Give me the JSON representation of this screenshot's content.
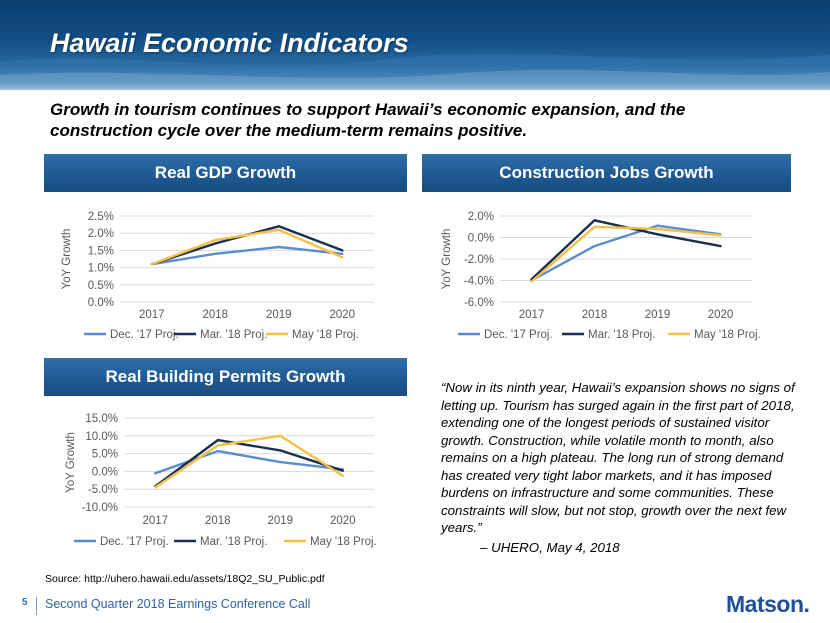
{
  "slide": {
    "title": "Hawaii Economic Indicators",
    "subtitle": "Growth in tourism continues to support Hawaii’s economic expansion, and the construction cycle over the medium-term remains positive."
  },
  "colors": {
    "dec17": "#5b8ccd",
    "mar18": "#1a2f4f",
    "may18": "#f6c046",
    "header_blue": "#1f5a93"
  },
  "chart_data": [
    {
      "id": "gdp",
      "type": "line",
      "title": "Real GDP Growth",
      "ylabel": "YoY Growth",
      "xlabel": "",
      "categories": [
        "2017",
        "2018",
        "2019",
        "2020"
      ],
      "ylim": [
        0.0,
        2.5
      ],
      "yticks": [
        0.0,
        0.5,
        1.0,
        1.5,
        2.0,
        2.5
      ],
      "ytick_labels": [
        "0.0%",
        "0.5%",
        "1.0%",
        "1.5%",
        "2.0%",
        "2.5%"
      ],
      "series": [
        {
          "name": "Dec. '17 Proj.",
          "values": [
            1.1,
            1.4,
            1.6,
            1.4
          ]
        },
        {
          "name": "Mar. '18 Proj.",
          "values": [
            1.1,
            1.7,
            2.2,
            1.5
          ]
        },
        {
          "name": "May '18 Proj.",
          "values": [
            1.1,
            1.8,
            2.1,
            1.3
          ]
        }
      ],
      "legend": "bottom",
      "grid": true
    },
    {
      "id": "construction",
      "type": "line",
      "title": "Construction Jobs Growth",
      "ylabel": "YoY Growth",
      "xlabel": "",
      "categories": [
        "2017",
        "2018",
        "2019",
        "2020"
      ],
      "ylim": [
        -6.0,
        2.0
      ],
      "yticks": [
        -6.0,
        -4.0,
        -2.0,
        0.0,
        2.0
      ],
      "ytick_labels": [
        "-6.0%",
        "-4.0%",
        "-2.0%",
        "0.0%",
        "2.0%"
      ],
      "series": [
        {
          "name": "Dec. '17 Proj.",
          "values": [
            -4.0,
            -0.8,
            1.1,
            0.3
          ]
        },
        {
          "name": "Mar. '18 Proj.",
          "values": [
            -3.9,
            1.6,
            0.3,
            -0.8
          ]
        },
        {
          "name": "May '18 Proj.",
          "values": [
            -4.1,
            1.0,
            0.8,
            0.2
          ]
        }
      ],
      "legend": "bottom",
      "grid": true
    },
    {
      "id": "permits",
      "type": "line",
      "title": "Real Building Permits Growth",
      "ylabel": "YoY Growth",
      "xlabel": "",
      "categories": [
        "2017",
        "2018",
        "2019",
        "2020"
      ],
      "ylim": [
        -10.0,
        15.0
      ],
      "yticks": [
        -10.0,
        -5.0,
        0.0,
        5.0,
        10.0,
        15.0
      ],
      "ytick_labels": [
        "-10.0%",
        "-5.0%",
        "0.0%",
        "5.0%",
        "10.0%",
        "15.0%"
      ],
      "series": [
        {
          "name": "Dec. '17 Proj.",
          "values": [
            -0.5,
            5.7,
            2.6,
            0.6
          ]
        },
        {
          "name": "Mar. '18 Proj.",
          "values": [
            -4.2,
            8.8,
            5.9,
            0.2
          ]
        },
        {
          "name": "May '18 Proj.",
          "values": [
            -4.5,
            7.3,
            10.0,
            -1.2
          ]
        }
      ],
      "legend": "bottom",
      "grid": true
    }
  ],
  "quote": {
    "text": "“Now in its ninth year, Hawaii’s expansion shows no signs of letting up. Tourism has surged again in the first part of 2018, extending one of the longest periods of sustained visitor growth. Construction, while volatile month to month, also remains on a high plateau. The long run of strong demand has created very tight labor markets, and it has imposed burdens on infrastructure and some communities. These constraints will slow, but not stop, growth over the next few years.”",
    "attribution": "– UHERO, May 4, 2018"
  },
  "source": "Source:  http://uhero.hawaii.edu/assets/18Q2_SU_Public.pdf",
  "footer": {
    "page_number": "5",
    "text": "Second Quarter 2018 Earnings Conference Call",
    "logo": "Matson."
  }
}
